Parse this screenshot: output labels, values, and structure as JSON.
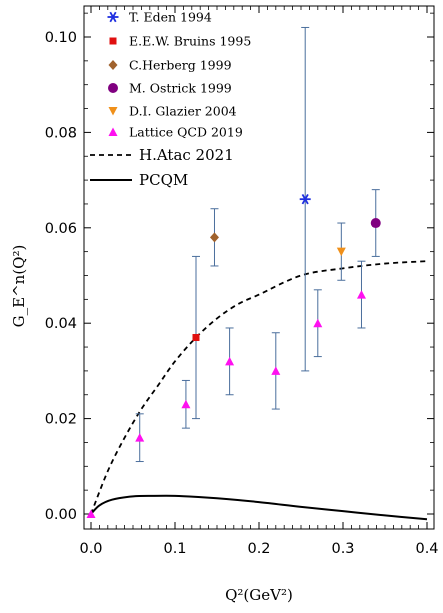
{
  "chart_data": {
    "type": "scatter",
    "title": "",
    "xlabel": "Q²(GeV²)",
    "ylabel": "G_E^n(Q²)",
    "xlim": [
      0,
      0.41
    ],
    "ylim": [
      -0.002,
      0.105
    ],
    "x_ticks": [
      "0.0",
      "0.1",
      "0.2",
      "0.3",
      "0.4"
    ],
    "y_ticks": [
      "0.00",
      "0.02",
      "0.04",
      "0.06",
      "0.08",
      "0.10"
    ],
    "grid": false,
    "legend_position": "top-left",
    "series": [
      {
        "name": "T. Eden 1994",
        "marker": "star",
        "color": "#1f2fe0",
        "points": [
          {
            "x": 0.255,
            "y": 0.066,
            "ylow": 0.03,
            "yhigh": 0.102
          }
        ]
      },
      {
        "name": "E.E.W. Bruins 1995",
        "marker": "square",
        "color": "#e01010",
        "points": [
          {
            "x": 0.125,
            "y": 0.037,
            "ylow": 0.02,
            "yhigh": 0.054
          }
        ]
      },
      {
        "name": "C.Herberg 1999",
        "marker": "diamond",
        "color": "#a0622d",
        "points": [
          {
            "x": 0.147,
            "y": 0.058,
            "ylow": 0.052,
            "yhigh": 0.064
          }
        ]
      },
      {
        "name": "M. Ostrick 1999",
        "marker": "circle",
        "color": "#800080",
        "points": [
          {
            "x": 0.339,
            "y": 0.061,
            "ylow": 0.054,
            "yhigh": 0.068
          }
        ]
      },
      {
        "name": "D.I. Glazier 2004",
        "marker": "triangle-down",
        "color": "#f0901a",
        "points": [
          {
            "x": 0.298,
            "y": 0.055,
            "ylow": 0.049,
            "yhigh": 0.061
          }
        ]
      },
      {
        "name": "Lattice QCD 2019",
        "marker": "triangle-up",
        "color": "#ff10f0",
        "points": [
          {
            "x": 0.0,
            "y": 0.0,
            "ylow": 0.0,
            "yhigh": 0.0
          },
          {
            "x": 0.058,
            "y": 0.016,
            "ylow": 0.011,
            "yhigh": 0.021
          },
          {
            "x": 0.113,
            "y": 0.023,
            "ylow": 0.018,
            "yhigh": 0.028
          },
          {
            "x": 0.165,
            "y": 0.032,
            "ylow": 0.025,
            "yhigh": 0.039
          },
          {
            "x": 0.22,
            "y": 0.03,
            "ylow": 0.022,
            "yhigh": 0.038
          },
          {
            "x": 0.27,
            "y": 0.04,
            "ylow": 0.033,
            "yhigh": 0.047
          },
          {
            "x": 0.322,
            "y": 0.046,
            "ylow": 0.039,
            "yhigh": 0.053
          }
        ]
      },
      {
        "name": "H.Atac 2021",
        "line": "dashed",
        "color": "#000000",
        "x": [
          0.0,
          0.02,
          0.04,
          0.06,
          0.08,
          0.1,
          0.125,
          0.15,
          0.175,
          0.2,
          0.25,
          0.3,
          0.35,
          0.4
        ],
        "y": [
          0.0,
          0.009,
          0.016,
          0.022,
          0.027,
          0.032,
          0.037,
          0.041,
          0.044,
          0.046,
          0.05,
          0.0515,
          0.0525,
          0.053
        ]
      },
      {
        "name": "PCQM",
        "line": "solid",
        "color": "#000000",
        "x": [
          0.0,
          0.01,
          0.025,
          0.05,
          0.075,
          0.1,
          0.125,
          0.15,
          0.2,
          0.25,
          0.3,
          0.35,
          0.4
        ],
        "y": [
          0.0,
          0.0018,
          0.003,
          0.0037,
          0.0038,
          0.0038,
          0.0036,
          0.0033,
          0.0025,
          0.0015,
          0.0006,
          -0.0003,
          -0.0011
        ]
      }
    ]
  },
  "colors": {
    "error_bar": "#4a6e9c",
    "frame": "#000000"
  }
}
